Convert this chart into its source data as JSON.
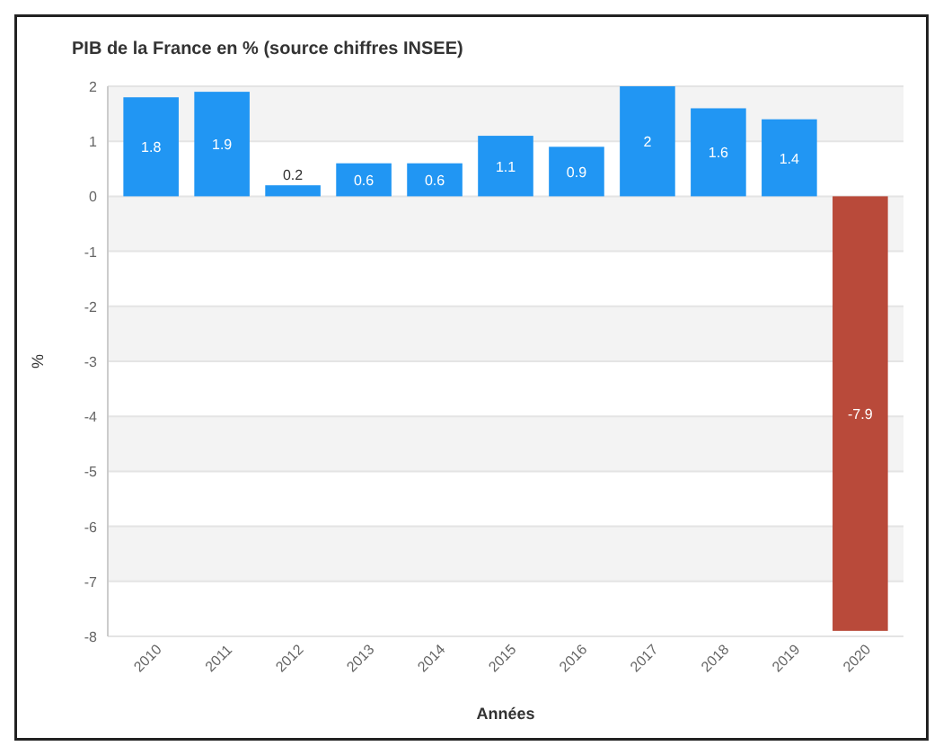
{
  "chart_data": {
    "type": "bar",
    "title": "PIB de la France en % (source chiffres INSEE)",
    "xlabel": "Années",
    "ylabel": "%",
    "categories": [
      "2010",
      "2011",
      "2012",
      "2013",
      "2014",
      "2015",
      "2016",
      "2017",
      "2018",
      "2019",
      "2020"
    ],
    "values": [
      1.8,
      1.9,
      0.2,
      0.6,
      0.6,
      1.1,
      0.9,
      2.0,
      1.6,
      1.4,
      -7.9
    ],
    "colors": [
      "#2196f3",
      "#2196f3",
      "#2196f3",
      "#2196f3",
      "#2196f3",
      "#2196f3",
      "#2196f3",
      "#2196f3",
      "#2196f3",
      "#2196f3",
      "#b94a3a"
    ],
    "ylim": [
      -8,
      2
    ],
    "yticks": [
      2,
      1,
      0,
      -1,
      -2,
      -3,
      -4,
      -5,
      -6,
      -7,
      -8
    ],
    "grid": "y",
    "data_labels": true
  }
}
